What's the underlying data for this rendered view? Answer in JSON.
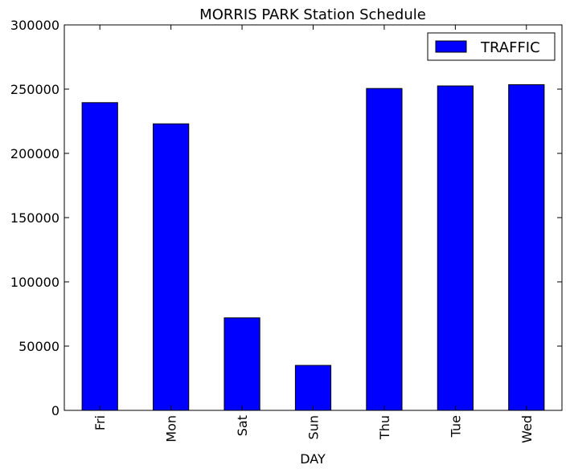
{
  "chart_data": {
    "type": "bar",
    "title": "MORRIS PARK Station Schedule",
    "xlabel": "DAY",
    "ylabel": "",
    "categories": [
      "Fri",
      "Mon",
      "Sat",
      "Sun",
      "Thu",
      "Tue",
      "Wed"
    ],
    "series": [
      {
        "name": "TRAFFIC",
        "values": [
          239500,
          223000,
          72000,
          35000,
          250500,
          252500,
          253500
        ],
        "color": "#0000ff"
      }
    ],
    "ylim": [
      0,
      300000
    ],
    "yticks": [
      0,
      50000,
      100000,
      150000,
      200000,
      250000,
      300000
    ],
    "ytick_labels": [
      "0",
      "50000",
      "100000",
      "150000",
      "200000",
      "250000",
      "300000"
    ],
    "legend_position": "top-right",
    "grid": false
  }
}
